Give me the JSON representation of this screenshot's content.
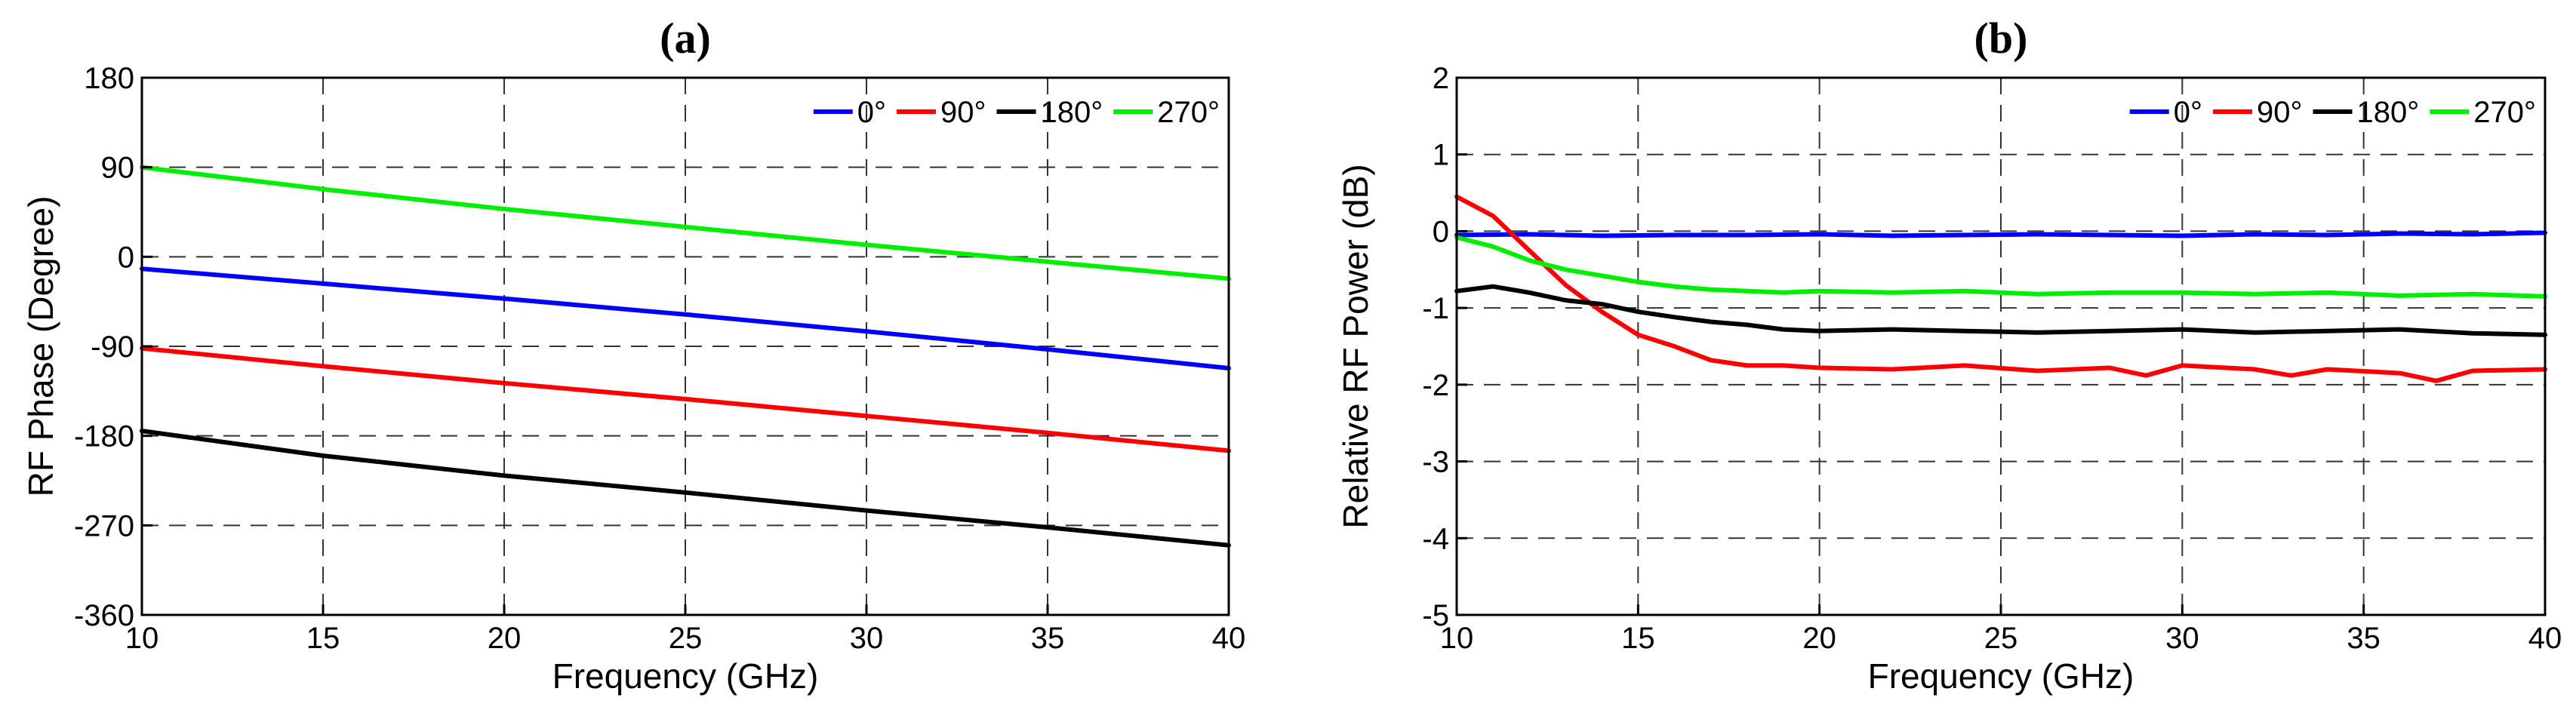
{
  "chart_data": [
    {
      "type": "line",
      "panel_label": "(a)",
      "xlabel": "Frequency (GHz)",
      "ylabel": "RF Phase (Degree)",
      "xlim": [
        10,
        40
      ],
      "ylim": [
        -360,
        180
      ],
      "xticks": [
        10,
        15,
        20,
        25,
        30,
        35,
        40
      ],
      "yticks": [
        180,
        90,
        0,
        -90,
        -180,
        -270,
        -360
      ],
      "x_tick_labels": [
        "10",
        "15",
        "20",
        "25",
        "30",
        "35",
        "40"
      ],
      "y_tick_labels": [
        "180",
        "90",
        "0",
        "-90",
        "-180",
        "-270",
        "-360"
      ],
      "grid": true,
      "legend_position": "top-right",
      "series": [
        {
          "name": "0°",
          "color": "#0000ff",
          "x": [
            10,
            15,
            20,
            25,
            30,
            35,
            40
          ],
          "y": [
            -12,
            -27,
            -42,
            -58,
            -75,
            -93,
            -112
          ]
        },
        {
          "name": "90°",
          "color": "#ff0000",
          "x": [
            10,
            15,
            20,
            25,
            30,
            35,
            40
          ],
          "y": [
            -92,
            -110,
            -127,
            -143,
            -160,
            -177,
            -195
          ]
        },
        {
          "name": "180°",
          "color": "#000000",
          "x": [
            10,
            15,
            20,
            25,
            30,
            35,
            40
          ],
          "y": [
            -175,
            -200,
            -220,
            -237,
            -255,
            -272,
            -290
          ]
        },
        {
          "name": "270°",
          "color": "#00ee00",
          "x": [
            10,
            15,
            20,
            25,
            30,
            35,
            40
          ],
          "y": [
            90,
            68,
            48,
            30,
            12,
            -5,
            -22
          ]
        }
      ]
    },
    {
      "type": "line",
      "panel_label": "(b)",
      "xlabel": "Frequency (GHz)",
      "ylabel": "Relative RF Power (dB)",
      "xlim": [
        10,
        40
      ],
      "ylim": [
        -5,
        2
      ],
      "xticks": [
        10,
        15,
        20,
        25,
        30,
        35,
        40
      ],
      "yticks": [
        2,
        1,
        0,
        -1,
        -2,
        -3,
        -4,
        -5
      ],
      "x_tick_labels": [
        "10",
        "15",
        "20",
        "25",
        "30",
        "35",
        "40"
      ],
      "y_tick_labels": [
        "2",
        "1",
        "0",
        "-1",
        "-2",
        "-3",
        "-4",
        "-5"
      ],
      "grid": true,
      "legend_position": "top-right",
      "series": [
        {
          "name": "0°",
          "color": "#0000ff",
          "x": [
            10,
            12,
            14,
            16,
            18,
            20,
            22,
            24,
            26,
            28,
            30,
            32,
            34,
            36,
            38,
            40
          ],
          "y": [
            -0.05,
            -0.04,
            -0.06,
            -0.05,
            -0.05,
            -0.04,
            -0.06,
            -0.05,
            -0.04,
            -0.05,
            -0.06,
            -0.04,
            -0.05,
            -0.03,
            -0.04,
            -0.02
          ]
        },
        {
          "name": "90°",
          "color": "#ff0000",
          "x": [
            10,
            11,
            12,
            13,
            14,
            15,
            16,
            17,
            18,
            19,
            20,
            22,
            24,
            26,
            28,
            29,
            30,
            32,
            33,
            34,
            36,
            37,
            38,
            40
          ],
          "y": [
            0.45,
            0.2,
            -0.25,
            -0.7,
            -1.05,
            -1.35,
            -1.5,
            -1.68,
            -1.75,
            -1.75,
            -1.78,
            -1.8,
            -1.75,
            -1.82,
            -1.78,
            -1.88,
            -1.75,
            -1.8,
            -1.88,
            -1.8,
            -1.85,
            -1.95,
            -1.82,
            -1.8
          ]
        },
        {
          "name": "180°",
          "color": "#000000",
          "x": [
            10,
            11,
            12,
            13,
            14,
            15,
            16,
            17,
            18,
            19,
            20,
            22,
            24,
            26,
            28,
            30,
            32,
            34,
            36,
            38,
            40
          ],
          "y": [
            -0.78,
            -0.72,
            -0.8,
            -0.9,
            -0.95,
            -1.05,
            -1.12,
            -1.18,
            -1.22,
            -1.28,
            -1.3,
            -1.28,
            -1.3,
            -1.32,
            -1.3,
            -1.28,
            -1.32,
            -1.3,
            -1.28,
            -1.33,
            -1.35
          ]
        },
        {
          "name": "270°",
          "color": "#00ee00",
          "x": [
            10,
            11,
            12,
            13,
            14,
            15,
            16,
            17,
            18,
            19,
            20,
            22,
            24,
            26,
            28,
            30,
            32,
            34,
            36,
            38,
            40
          ],
          "y": [
            -0.08,
            -0.2,
            -0.38,
            -0.5,
            -0.58,
            -0.66,
            -0.72,
            -0.76,
            -0.78,
            -0.8,
            -0.78,
            -0.8,
            -0.78,
            -0.82,
            -0.8,
            -0.8,
            -0.82,
            -0.8,
            -0.84,
            -0.82,
            -0.85
          ]
        }
      ]
    }
  ]
}
